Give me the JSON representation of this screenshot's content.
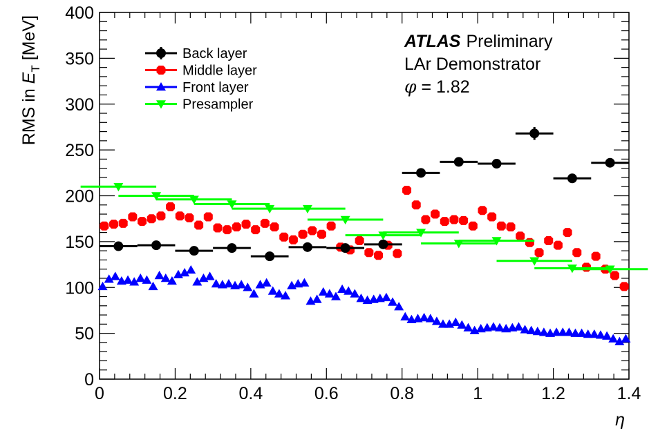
{
  "chart_data": {
    "type": "scatter",
    "title": "",
    "xlabel": "η",
    "ylabel": "RMS in E_T [MeV]",
    "ylabel_parts": {
      "prefix": "RMS in ",
      "var": "E",
      "sub": "T",
      "suffix": " [MeV]"
    },
    "xlim": [
      0,
      1.4
    ],
    "ylim": [
      0,
      400
    ],
    "x_ticks": [
      "0",
      "0.2",
      "0.4",
      "0.6",
      "0.8",
      "1",
      "1.2",
      "1.4"
    ],
    "y_ticks": [
      "0",
      "50",
      "100",
      "150",
      "200",
      "250",
      "300",
      "350",
      "400"
    ],
    "grid": false,
    "legend_position": "top-left",
    "annotations": {
      "experiment": "ATLAS",
      "status": "Preliminary",
      "line2": "LAr Demonstrator",
      "line3_var": "φ",
      "line3_rest": " = 1.82"
    },
    "series": [
      {
        "name": "Back layer",
        "color": "#000000",
        "marker": "circle",
        "x_half_width": 0.05,
        "x": [
          0.05,
          0.15,
          0.25,
          0.35,
          0.45,
          0.55,
          0.65,
          0.75,
          0.85,
          0.95,
          1.05,
          1.15,
          1.25,
          1.35
        ],
        "y": [
          145,
          146,
          140,
          143,
          134,
          144,
          143,
          147,
          225,
          237,
          235,
          268,
          219,
          236
        ],
        "y_err": [
          3,
          3,
          3,
          3,
          3,
          3,
          3,
          3,
          5,
          5,
          5,
          7,
          5,
          5
        ]
      },
      {
        "name": "Middle layer",
        "color": "#ff0000",
        "marker": "square",
        "x_half_width": 0,
        "x": [
          0.0125,
          0.0375,
          0.0625,
          0.0875,
          0.1125,
          0.1375,
          0.1625,
          0.1875,
          0.2125,
          0.2375,
          0.2625,
          0.2875,
          0.3125,
          0.3375,
          0.3625,
          0.3875,
          0.4125,
          0.4375,
          0.4625,
          0.4875,
          0.5125,
          0.5375,
          0.5625,
          0.5875,
          0.6125,
          0.6375,
          0.6625,
          0.6875,
          0.7125,
          0.7375,
          0.7625,
          0.7875,
          0.8125,
          0.8375,
          0.8625,
          0.8875,
          0.9125,
          0.9375,
          0.9625,
          0.9875,
          1.0125,
          1.0375,
          1.0625,
          1.0875,
          1.1125,
          1.1375,
          1.1625,
          1.1875,
          1.2125,
          1.2375,
          1.2625,
          1.2875,
          1.3125,
          1.3375,
          1.3625,
          1.3875
        ],
        "y": [
          167,
          169,
          170,
          177,
          172,
          175,
          178,
          188,
          178,
          176,
          168,
          177,
          165,
          163,
          166,
          169,
          163,
          170,
          166,
          155,
          152,
          158,
          162,
          158,
          167,
          144,
          141,
          151,
          138,
          135,
          146,
          137,
          206,
          190,
          174,
          180,
          172,
          174,
          173,
          167,
          184,
          177,
          167,
          166,
          156,
          149,
          138,
          151,
          146,
          160,
          138,
          122,
          134,
          120,
          113,
          101
        ],
        "y_err": []
      },
      {
        "name": "Front layer",
        "color": "#0000ff",
        "marker": "triangle-up",
        "x_half_width": 0,
        "x": [
          0.0083,
          0.025,
          0.0417,
          0.0583,
          0.075,
          0.0917,
          0.1083,
          0.125,
          0.1417,
          0.1583,
          0.175,
          0.1917,
          0.2083,
          0.225,
          0.2417,
          0.2583,
          0.275,
          0.2917,
          0.3083,
          0.325,
          0.3417,
          0.3583,
          0.375,
          0.3917,
          0.4083,
          0.425,
          0.4417,
          0.4583,
          0.475,
          0.4917,
          0.5083,
          0.525,
          0.5417,
          0.5583,
          0.575,
          0.5917,
          0.6083,
          0.625,
          0.6417,
          0.6583,
          0.675,
          0.6917,
          0.7083,
          0.725,
          0.7417,
          0.7583,
          0.775,
          0.7917,
          0.8083,
          0.825,
          0.8417,
          0.8583,
          0.875,
          0.8917,
          0.9083,
          0.925,
          0.9417,
          0.9583,
          0.975,
          0.9917,
          1.0083,
          1.025,
          1.0417,
          1.0583,
          1.075,
          1.0917,
          1.1083,
          1.125,
          1.1417,
          1.1583,
          1.175,
          1.1917,
          1.2083,
          1.225,
          1.2417,
          1.2583,
          1.275,
          1.2917,
          1.3083,
          1.325,
          1.3417,
          1.3583,
          1.375,
          1.3917
        ],
        "y": [
          101,
          109,
          112,
          107,
          108,
          106,
          110,
          108,
          101,
          113,
          110,
          107,
          114,
          116,
          119,
          106,
          110,
          112,
          104,
          103,
          104,
          102,
          103,
          100,
          93,
          103,
          105,
          96,
          93,
          91,
          102,
          104,
          105,
          85,
          87,
          95,
          93,
          90,
          98,
          96,
          93,
          88,
          86,
          87,
          88,
          89,
          84,
          79,
          68,
          65,
          66,
          67,
          66,
          63,
          60,
          60,
          62,
          59,
          56,
          53,
          55,
          56,
          57,
          56,
          55,
          56,
          57,
          54,
          53,
          52,
          51,
          50,
          51,
          51,
          51,
          50,
          50,
          49,
          49,
          48,
          47,
          44,
          41,
          44
        ],
        "y_err": []
      },
      {
        "name": "Presampler",
        "color": "#00ff00",
        "marker": "triangle-down",
        "x_half_width": 0.1,
        "x": [
          0.05,
          0.15,
          0.25,
          0.35,
          0.45,
          0.55,
          0.65,
          0.75,
          0.85,
          0.95,
          1.05,
          1.15,
          1.25,
          1.35
        ],
        "y": [
          210,
          200,
          196,
          191,
          186,
          186,
          174,
          157,
          160,
          148,
          151,
          129,
          121,
          120
        ],
        "y_err": []
      }
    ]
  }
}
